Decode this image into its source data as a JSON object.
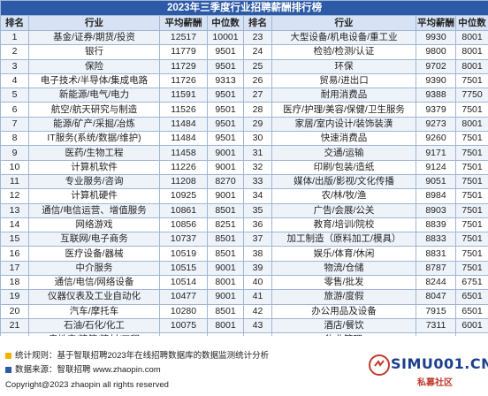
{
  "title": "2023年三季度行业招聘薪酬排行榜",
  "headers": [
    "排名",
    "行业",
    "平均薪酬",
    "中位数",
    "排名",
    "行业",
    "平均薪酬",
    "中位数"
  ],
  "rows": [
    [
      [
        "1",
        "基金/证券/期货/投资",
        "12517",
        "10001"
      ],
      [
        "23",
        "大型设备/机电设备/重工业",
        "9930",
        "8001"
      ]
    ],
    [
      [
        "2",
        "银行",
        "11779",
        "9501"
      ],
      [
        "24",
        "检验/检测/认证",
        "9800",
        "8001"
      ]
    ],
    [
      [
        "3",
        "保险",
        "11729",
        "9501"
      ],
      [
        "25",
        "环保",
        "9702",
        "8001"
      ]
    ],
    [
      [
        "4",
        "电子技术/半导体/集成电路",
        "11726",
        "9313"
      ],
      [
        "26",
        "贸易/进出口",
        "9390",
        "7501"
      ]
    ],
    [
      [
        "5",
        "新能源/电气/电力",
        "11591",
        "9501"
      ],
      [
        "27",
        "耐用消费品",
        "9388",
        "7750"
      ]
    ],
    [
      [
        "6",
        "航空/航天研究与制造",
        "11526",
        "9501"
      ],
      [
        "28",
        "医疗/护理/美容/保健/卫生服务",
        "9379",
        "7501"
      ]
    ],
    [
      [
        "7",
        "能源/矿产/采掘/冶炼",
        "11484",
        "9501"
      ],
      [
        "29",
        "家居/室内设计/装饰装潢",
        "9273",
        "8001"
      ]
    ],
    [
      [
        "8",
        "IT服务(系统/数据/维护)",
        "11484",
        "9501"
      ],
      [
        "30",
        "快速消费品",
        "9260",
        "7501"
      ]
    ],
    [
      [
        "9",
        "医药/生物工程",
        "11458",
        "9001"
      ],
      [
        "31",
        "交通/运输",
        "9171",
        "7501"
      ]
    ],
    [
      [
        "10",
        "计算机软件",
        "11226",
        "9001"
      ],
      [
        "32",
        "印刷/包装/造纸",
        "9124",
        "7501"
      ]
    ],
    [
      [
        "11",
        "专业服务/咨询",
        "11208",
        "8270"
      ],
      [
        "33",
        "媒体/出版/影视/文化传播",
        "9051",
        "7501"
      ]
    ],
    [
      [
        "12",
        "计算机硬件",
        "10925",
        "9001"
      ],
      [
        "34",
        "农/林/牧/渔",
        "8984",
        "7501"
      ]
    ],
    [
      [
        "13",
        "通信/电信运营、增值服务",
        "10861",
        "8501"
      ],
      [
        "35",
        "广告/会展/公关",
        "8903",
        "7501"
      ]
    ],
    [
      [
        "14",
        "网络游戏",
        "10856",
        "8251"
      ],
      [
        "36",
        "教育/培训/院校",
        "8839",
        "7501"
      ]
    ],
    [
      [
        "15",
        "互联网/电子商务",
        "10737",
        "8501"
      ],
      [
        "37",
        "加工制造（原料加工/模具）",
        "8833",
        "7501"
      ]
    ],
    [
      [
        "16",
        "医疗设备/器械",
        "10519",
        "8501"
      ],
      [
        "38",
        "娱乐/体育/休闲",
        "8831",
        "7501"
      ]
    ],
    [
      [
        "17",
        "中介服务",
        "10515",
        "9001"
      ],
      [
        "39",
        "物流/仓储",
        "8787",
        "7501"
      ]
    ],
    [
      [
        "18",
        "通信/电信/网络设备",
        "10514",
        "8001"
      ],
      [
        "40",
        "零售/批发",
        "8244",
        "6751"
      ]
    ],
    [
      [
        "19",
        "仪器仪表及工业自动化",
        "10477",
        "9001"
      ],
      [
        "41",
        "旅游/度假",
        "8047",
        "6501"
      ]
    ],
    [
      [
        "20",
        "汽车/摩托车",
        "10280",
        "8501"
      ],
      [
        "42",
        "办公用品及设备",
        "7915",
        "6501"
      ]
    ],
    [
      [
        "21",
        "石油/石化/化工",
        "10075",
        "8001"
      ],
      [
        "43",
        "酒店/餐饮",
        "7311",
        "6001"
      ]
    ],
    [
      [
        "22",
        "房地产/建筑/建材/工程",
        "10008",
        "8251"
      ],
      [
        "44",
        "物业管理",
        "",
        ""
      ]
    ]
  ],
  "notes": {
    "rule": "统计规则：基于智联招聘2023年在线招聘数据库的数据监测统计分析",
    "source": "数据来源：智联招聘 www.zhaopin.com",
    "copyright": "Copyright@2023 zhaopin all rights reserved"
  },
  "watermark": {
    "text": "SIMU001.CN",
    "sub": "私募社区"
  },
  "colors": {
    "title_bg": "#2c5aa6",
    "header_bg": "#d7e3f4",
    "stripe": "#eef3fa",
    "border": "#9fb6d6",
    "note_yellow": "#f0b400",
    "note_blue": "#2c5aa6"
  }
}
